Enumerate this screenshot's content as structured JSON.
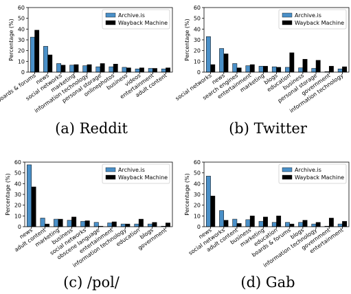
{
  "chart_data": [
    {
      "type": "bar",
      "caption": "(a) Reddit",
      "ylabel": "Percentage (%)",
      "ylim": [
        0,
        60
      ],
      "yticks": [
        0,
        10,
        20,
        30,
        40,
        50,
        60
      ],
      "legend_position": "top-right",
      "categories": [
        "boards & forums",
        "news",
        "social networks",
        "marketing",
        "information technology",
        "personal storage",
        "onlinephotos",
        "business",
        "videos",
        "entertainment",
        "adult content"
      ],
      "series": [
        {
          "name": "Archive.is",
          "color": "#4a90c8",
          "values": [
            32.5,
            24,
            8,
            6.5,
            6,
            5,
            5,
            4.5,
            3,
            3.5,
            3
          ]
        },
        {
          "name": "Wayback Machine",
          "color": "#000000",
          "values": [
            39,
            16,
            6.5,
            7,
            7,
            8,
            7.5,
            4,
            4,
            3.5,
            4
          ]
        }
      ]
    },
    {
      "type": "bar",
      "caption": "(b) Twitter",
      "ylabel": "Percentage (%)",
      "ylim": [
        0,
        60
      ],
      "yticks": [
        0,
        10,
        20,
        30,
        40,
        50,
        60
      ],
      "legend_position": "top-right",
      "categories": [
        "social networks",
        "news",
        "search engines",
        "entertainment",
        "marketing",
        "blogs",
        "education",
        "business",
        "personal storage",
        "government",
        "information technology"
      ],
      "series": [
        {
          "name": "Archive.is",
          "color": "#4a90c8",
          "values": [
            33,
            22,
            8,
            6,
            5.5,
            5,
            4.5,
            4,
            3.5,
            0.5,
            3
          ]
        },
        {
          "name": "Wayback Machine",
          "color": "#000000",
          "values": [
            7,
            17,
            4,
            7,
            5.5,
            4.5,
            18,
            12,
            11,
            5.5,
            5
          ]
        }
      ]
    },
    {
      "type": "bar",
      "caption": "(c) /pol/",
      "ylabel": "Percentage (%)",
      "ylim": [
        0,
        60
      ],
      "yticks": [
        0,
        10,
        20,
        30,
        40,
        50,
        60
      ],
      "legend_position": "top-right",
      "categories": [
        "news",
        "adult content",
        "marketing",
        "business",
        "social networks",
        "obscene language",
        "entertainment",
        "information technology",
        "education",
        "blogs",
        "government"
      ],
      "series": [
        {
          "name": "Archive.is",
          "color": "#4a90c8",
          "values": [
            57.5,
            8,
            7,
            6,
            5,
            4,
            3.5,
            2.5,
            2.5,
            2.5,
            0.5
          ]
        },
        {
          "name": "Wayback Machine",
          "color": "#000000",
          "values": [
            37,
            2.5,
            7,
            9,
            5.5,
            0.5,
            4.5,
            2.5,
            7,
            4,
            3.5
          ]
        }
      ]
    },
    {
      "type": "bar",
      "caption": "(d) Gab",
      "ylabel": "Percentage (%)",
      "ylim": [
        0,
        60
      ],
      "yticks": [
        0,
        10,
        20,
        30,
        40,
        50,
        60
      ],
      "legend_position": "top-right",
      "categories": [
        "news",
        "social networks",
        "adult content",
        "business",
        "marketing",
        "education",
        "boards & forums",
        "blogs",
        "information technology",
        "government",
        "entertainment"
      ],
      "series": [
        {
          "name": "Archive.is",
          "color": "#4a90c8",
          "values": [
            47,
            15,
            7,
            6.5,
            5,
            4,
            4,
            4,
            2.5,
            0.5,
            2.5
          ]
        },
        {
          "name": "Wayback Machine",
          "color": "#000000",
          "values": [
            28.5,
            6,
            3,
            10,
            9,
            10,
            2.5,
            6,
            4,
            8,
            5
          ]
        }
      ]
    }
  ]
}
